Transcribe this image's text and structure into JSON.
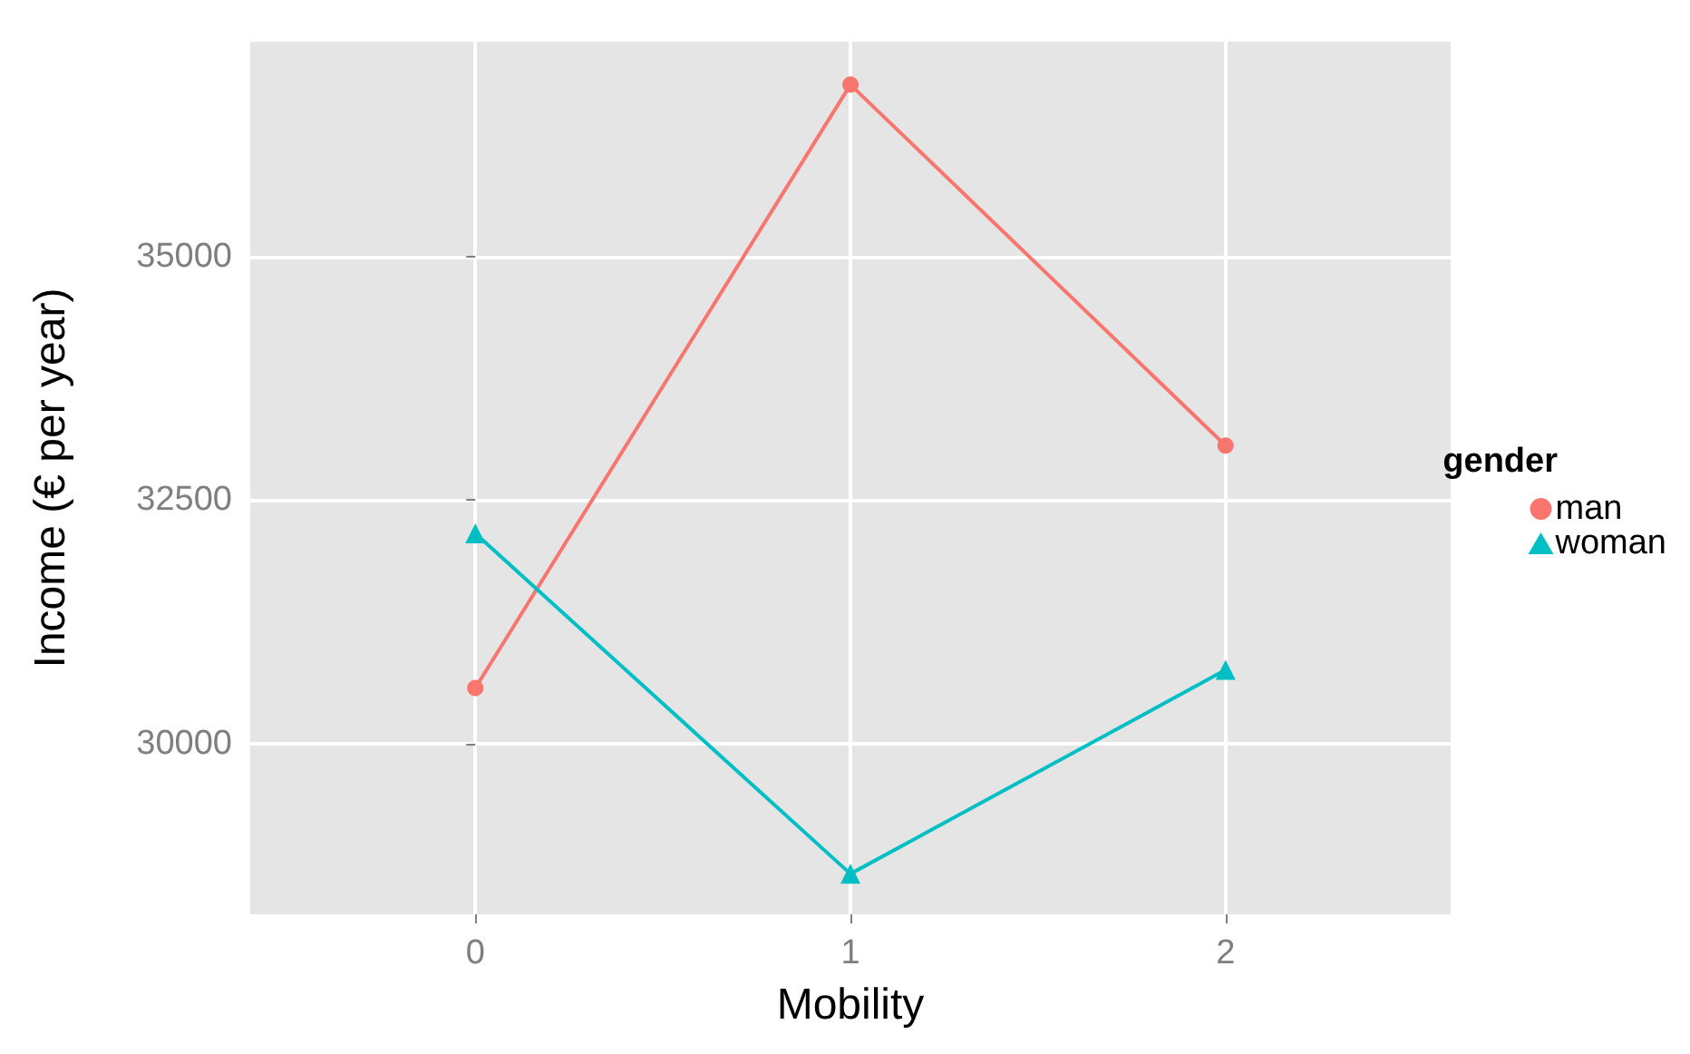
{
  "chart_data": {
    "type": "line",
    "xlabel": "Mobility",
    "ylabel": "Income (€ per year)",
    "legend_title": "gender",
    "x": [
      0,
      1,
      2
    ],
    "series": [
      {
        "name": "man",
        "color": "#f8766d",
        "marker": "circle",
        "values": [
          30575,
          36760,
          33060
        ]
      },
      {
        "name": "woman",
        "color": "#00bfc4",
        "marker": "triangle",
        "values": [
          32160,
          28670,
          30760
        ]
      }
    ],
    "xlim": [
      -0.6,
      2.6
    ],
    "xticks": [
      0,
      1,
      2
    ],
    "ylim": [
      28255,
      37200
    ],
    "yticks": [
      30000,
      32500,
      35000
    ],
    "grid": true,
    "legend": "right",
    "line_style": "solid"
  }
}
